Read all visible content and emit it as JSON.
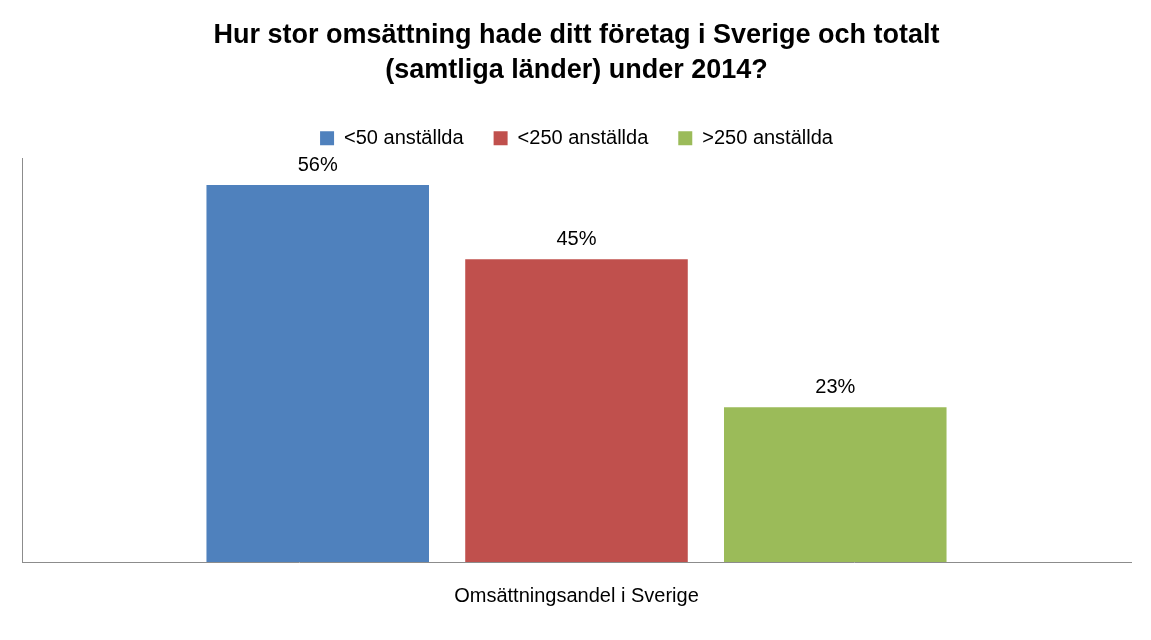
{
  "chart_data": {
    "type": "bar",
    "title": [
      "Hur stor omsättning hade ditt företag i Sverige och totalt",
      "(samtliga länder) under 2014?"
    ],
    "categories": [
      "Omsättningsandel i Sverige"
    ],
    "series": [
      {
        "name": "<50 anställda",
        "color": "#4f81bd",
        "values": [
          56
        ],
        "value_labels": [
          "56%"
        ]
      },
      {
        "name": "<250 anställda",
        "color": "#c0504d",
        "values": [
          45
        ],
        "value_labels": [
          "45%"
        ]
      },
      {
        "name": ">250 anställda",
        "color": "#9bbb59",
        "values": [
          23
        ],
        "value_labels": [
          "23%"
        ]
      }
    ],
    "ylim": [
      0,
      60
    ],
    "grid": false,
    "legend": "top",
    "data_labels": true,
    "tick_labels": "x"
  }
}
